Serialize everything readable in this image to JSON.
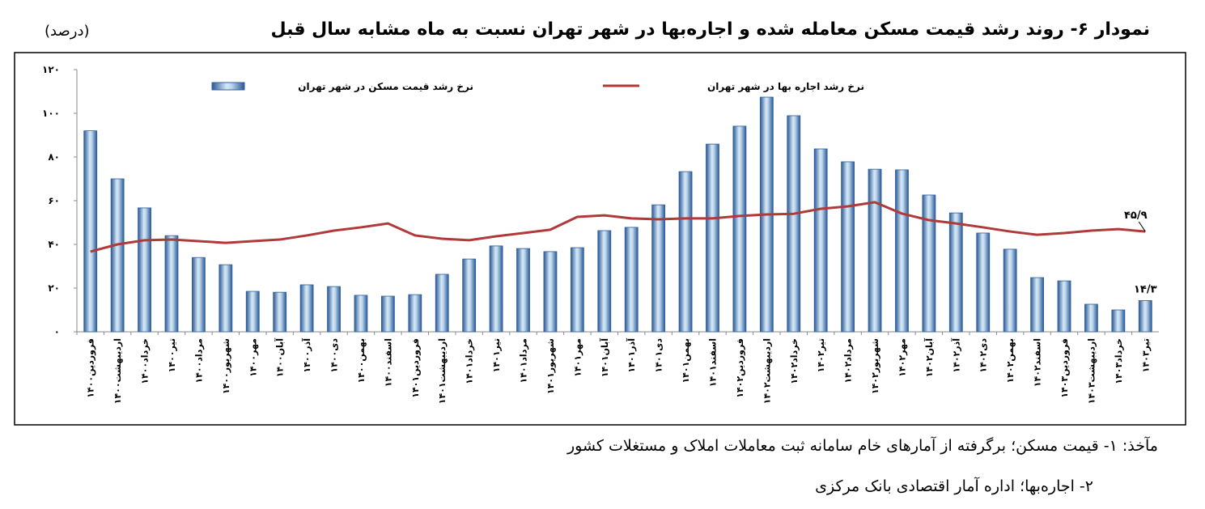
{
  "chart_data": {
    "type": "bar",
    "title": "نمودار ۶- روند رشد قیمت مسکن معامله شده و اجاره‌بها در شهر تهران نسبت به ماه مشابه سال قبل",
    "unit": "(درصد)",
    "categories": [
      "فروردین۱۴۰۰",
      "اردیبهشت۱۴۰۰",
      "خرداد۱۴۰۰",
      "تیر۱۴۰۰",
      "مرداد۱۴۰۰",
      "شهریور۱۴۰۰",
      "مهر۱۴۰۰",
      "آبان۱۴۰۰",
      "آذر۱۴۰۰",
      "دی۱۴۰۰",
      "بهمن۱۴۰۰",
      "اسفند۱۴۰۰",
      "فروردین۱۴۰۱",
      "اردیبهشت۱۴۰۱",
      "خرداد۱۴۰۱",
      "تیر۱۴۰۱",
      "مرداد۱۴۰۱",
      "شهریور۱۴۰۱",
      "مهر۱۴۰۱",
      "آبان۱۴۰۱",
      "آذر۱۴۰۱",
      "دی۱۴۰۱",
      "بهمن۱۴۰۱",
      "اسفند۱۴۰۱",
      "فروردین۱۴۰۲",
      "اردیبهشت۱۴۰۲",
      "خرداد۱۴۰۲",
      "تیر۱۴۰۲",
      "مرداد۱۴۰۲",
      "شهریور۱۴۰۲",
      "مهر۱۴۰۲",
      "آبان۱۴۰۲",
      "آذر۱۴۰۲",
      "دی۱۴۰۲",
      "بهمن۱۴۰۲",
      "اسفند۱۴۰۲",
      "فروردین۱۴۰۳",
      "اردیبهشت۱۴۰۳",
      "خرداد۱۴۰۳",
      "تیر۱۴۰۳"
    ],
    "series": [
      {
        "name": "نرخ رشد قیمت مسکن در شهر تهران",
        "type": "bar",
        "color": "#2f5f9e",
        "values": [
          92,
          70,
          56.7,
          44,
          34,
          30.7,
          18.5,
          18.1,
          21.5,
          20.7,
          16.7,
          16.3,
          17,
          26.3,
          33.3,
          39.3,
          38.1,
          36.7,
          38.5,
          46.3,
          47.8,
          58.1,
          73.3,
          85.9,
          94.1,
          107.4,
          98.9,
          83.7,
          77.8,
          74.4,
          74.1,
          62.6,
          54.4,
          45.2,
          37.8,
          24.8,
          23.3,
          12.6,
          10,
          14.3
        ],
        "value_labels": [
          null,
          null,
          null,
          null,
          null,
          null,
          null,
          null,
          null,
          null,
          null,
          null,
          null,
          null,
          null,
          null,
          null,
          null,
          null,
          null,
          null,
          null,
          null,
          null,
          null,
          null,
          null,
          null,
          null,
          null,
          null,
          null,
          null,
          null,
          null,
          null,
          null,
          null,
          null,
          "۱۴/۳"
        ]
      },
      {
        "name": "نرخ رشد اجاره بها در شهر تهران",
        "type": "line",
        "color": "#b03a3a",
        "values": [
          36.7,
          40,
          41.9,
          42.2,
          41.5,
          40.7,
          41.5,
          42.2,
          44.1,
          46.3,
          47.8,
          49.6,
          44.1,
          42.6,
          41.9,
          43.7,
          45.2,
          46.7,
          52.6,
          53.3,
          51.9,
          51.5,
          51.9,
          51.9,
          53,
          53.7,
          54,
          56.3,
          57.4,
          59.3,
          54.1,
          51.1,
          49.6,
          47.8,
          45.9,
          44.4,
          45.2,
          46.3,
          47,
          45.9
        ],
        "value_labels": [
          null,
          null,
          null,
          null,
          null,
          null,
          null,
          null,
          null,
          null,
          null,
          null,
          null,
          null,
          null,
          null,
          null,
          null,
          null,
          null,
          null,
          null,
          null,
          null,
          null,
          null,
          null,
          null,
          null,
          null,
          null,
          null,
          null,
          null,
          null,
          null,
          null,
          null,
          null,
          "۴۵/۹"
        ]
      }
    ],
    "ylim": [
      0,
      120
    ],
    "yticks": [
      {
        "value": 0,
        "label": "۰"
      },
      {
        "value": 20,
        "label": "۲۰"
      },
      {
        "value": 40,
        "label": "۴۰"
      },
      {
        "value": 60,
        "label": "۶۰"
      },
      {
        "value": 80,
        "label": "۸۰"
      },
      {
        "value": 100,
        "label": "۱۰۰"
      },
      {
        "value": 120,
        "label": "۱۲۰"
      }
    ],
    "grid": false
  },
  "source": [
    "مآخذ: ۱- قیمت مسکن؛ برگرفته از آمارهای خام سامانه ثبت معاملات املاک و مستغلات کشور",
    "۲- اجاره‌بها؛ اداره آمار اقتصادی بانک مرکزی"
  ]
}
